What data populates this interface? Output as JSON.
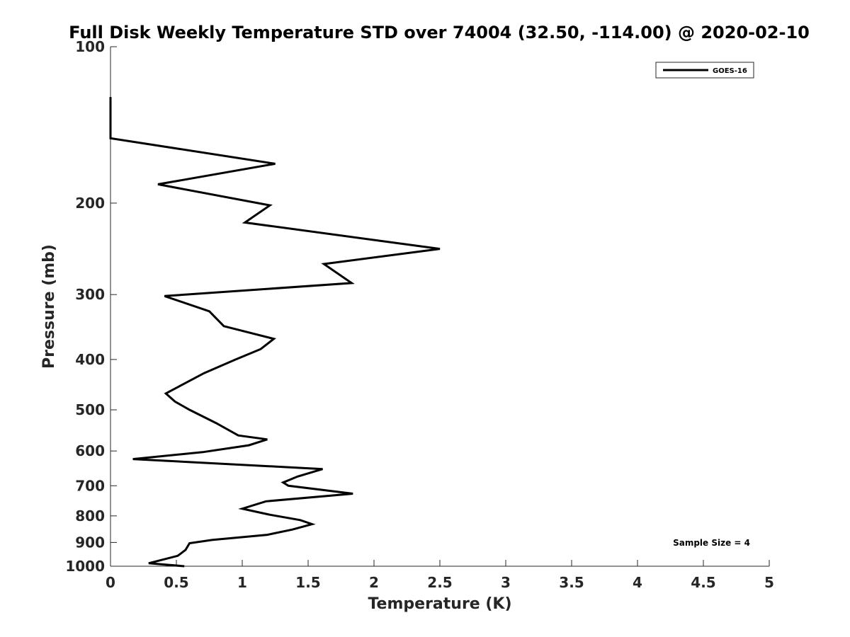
{
  "chart_data": {
    "type": "line",
    "title": "Full Disk Weekly Temperature STD over 74004 (32.50, -114.00) @ 2020-02-10",
    "xlabel": "Temperature (K)",
    "ylabel": "Pressure (mb)",
    "xlim": [
      0,
      5
    ],
    "ylim": [
      100,
      1000
    ],
    "y_scale": "log",
    "y_reversed": true,
    "xticks": [
      "0",
      "0.5",
      "1",
      "1.5",
      "2",
      "2.5",
      "3",
      "3.5",
      "4",
      "4.5",
      "5"
    ],
    "yticks": [
      "100",
      "200",
      "300",
      "400",
      "500",
      "600",
      "700",
      "800",
      "900",
      "1000"
    ],
    "grid": false,
    "legend_position": "top-right",
    "series": [
      {
        "name": "GOES-16",
        "color": "#000000",
        "points": [
          [
            0.0,
            125
          ],
          [
            0.0,
            135
          ],
          [
            0.0,
            150
          ],
          [
            1.25,
            168
          ],
          [
            0.36,
            184
          ],
          [
            1.21,
            202
          ],
          [
            1.02,
            218
          ],
          [
            2.5,
            245
          ],
          [
            1.62,
            262
          ],
          [
            1.83,
            285
          ],
          [
            0.41,
            302
          ],
          [
            0.75,
            323
          ],
          [
            0.86,
            345
          ],
          [
            1.24,
            365
          ],
          [
            1.14,
            382
          ],
          [
            0.95,
            400
          ],
          [
            0.71,
            425
          ],
          [
            0.42,
            465
          ],
          [
            0.49,
            482
          ],
          [
            0.6,
            500
          ],
          [
            0.8,
            530
          ],
          [
            0.97,
            560
          ],
          [
            1.19,
            570
          ],
          [
            1.05,
            585
          ],
          [
            0.7,
            603
          ],
          [
            0.17,
            622
          ],
          [
            1.61,
            650
          ],
          [
            1.42,
            672
          ],
          [
            1.31,
            690
          ],
          [
            1.35,
            700
          ],
          [
            1.84,
            725
          ],
          [
            1.18,
            750
          ],
          [
            1.0,
            775
          ],
          [
            1.2,
            795
          ],
          [
            1.44,
            815
          ],
          [
            1.53,
            830
          ],
          [
            1.38,
            850
          ],
          [
            1.19,
            870
          ],
          [
            0.77,
            890
          ],
          [
            0.6,
            903
          ],
          [
            0.57,
            930
          ],
          [
            0.51,
            955
          ],
          [
            0.29,
            987
          ],
          [
            0.56,
            1000
          ]
        ]
      }
    ],
    "annotations": [
      {
        "text": "Sample Size = 4",
        "position": "bottom-right"
      }
    ]
  }
}
